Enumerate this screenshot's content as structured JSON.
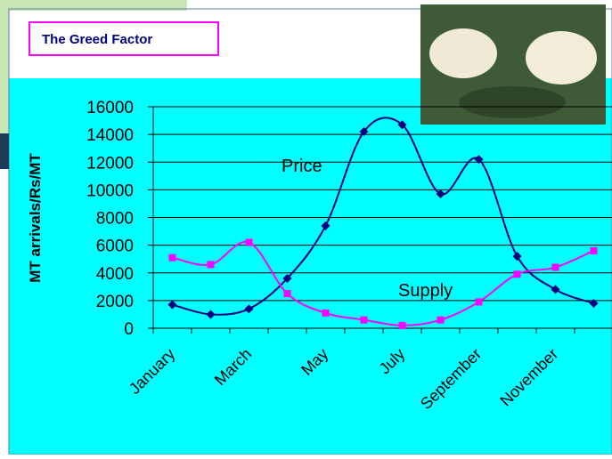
{
  "chart_data": {
    "type": "line",
    "title": "The Greed Factor",
    "y_label": "MT arrivals/Rs/MT",
    "categories": [
      "January",
      null,
      "March",
      null,
      "May",
      null,
      "July",
      null,
      "September",
      null,
      "November",
      null
    ],
    "series": [
      {
        "name": "Price",
        "color": "#000080",
        "values": [
          1700,
          1000,
          1400,
          3600,
          7400,
          14200,
          14700,
          9700,
          12200,
          5200,
          2800,
          1800
        ]
      },
      {
        "name": "Supply",
        "color": "#ff00ff",
        "values": [
          5100,
          4600,
          6200,
          2500,
          1100,
          600,
          200,
          600,
          1900,
          3900,
          4400,
          5600
        ]
      }
    ],
    "ylim": [
      0,
      16000
    ],
    "yticks": [
      0,
      2000,
      4000,
      6000,
      8000,
      10000,
      12000,
      14000,
      16000
    ],
    "grid": true
  }
}
